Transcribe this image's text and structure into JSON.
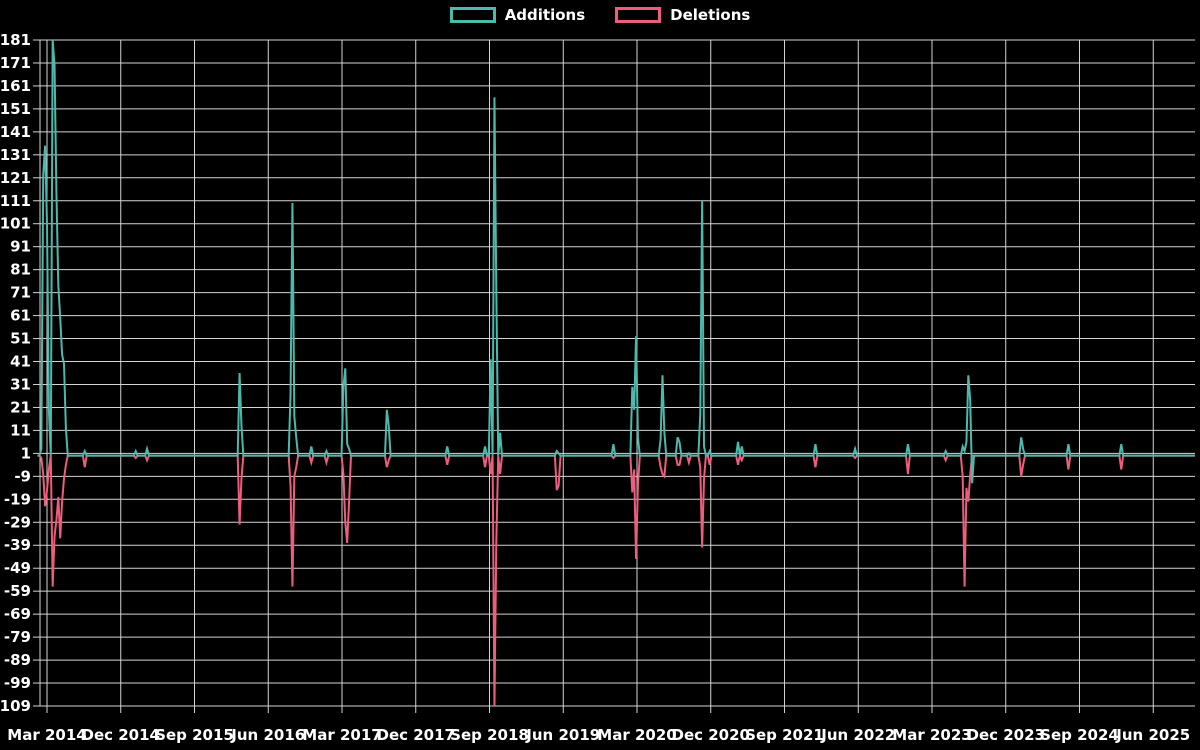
{
  "legend": {
    "items": [
      {
        "label": "Additions",
        "color": "#4cb9ad"
      },
      {
        "label": "Deletions",
        "color": "#ee5d7d"
      }
    ]
  },
  "colors": {
    "background": "#000000",
    "grid": "#d4d4d4",
    "axis_text": "#ffffff",
    "additions": "#4cb9ad",
    "deletions": "#ee5d7d"
  },
  "chart_data": {
    "type": "line",
    "title": "",
    "xlabel": "",
    "ylabel": "",
    "grid": true,
    "legend_position": "top-center",
    "ylim": [
      -109,
      181
    ],
    "y_ticks": [
      181,
      171,
      161,
      151,
      141,
      131,
      121,
      111,
      101,
      91,
      81,
      71,
      61,
      51,
      41,
      31,
      21,
      11,
      1,
      -9,
      -19,
      -29,
      -39,
      -49,
      -59,
      -69,
      -79,
      -89,
      -99,
      -109
    ],
    "x_ticks": [
      "Mar 2014",
      "Dec 2014",
      "Sep 2015",
      "Jun 2016",
      "Mar 2017",
      "Dec 2017",
      "Sep 2018",
      "Jun 2019",
      "Mar 2020",
      "Dec 2020",
      "Sep 2021",
      "Jun 2022",
      "Mar 2023",
      "Dec 2023",
      "Sep 2024",
      "Jun 2025"
    ],
    "x_tick_interval_weeks": 39,
    "week_range": {
      "min_week": -5,
      "max_week": 608
    },
    "series": [
      {
        "name": "Additions",
        "color": "#4cb9ad",
        "baseline": 0
      },
      {
        "name": "Deletions",
        "color": "#ee5d7d",
        "baseline": 0
      }
    ],
    "weekly_spikes_note": "weeks are offsets from the 'Mar 2014' tick; format [week, additions, deletions]; all other weeks are 0",
    "weekly_spikes": [
      [
        -3,
        3,
        -1
      ],
      [
        -2,
        122,
        -8
      ],
      [
        -1,
        135,
        -22
      ],
      [
        0,
        101,
        -15
      ],
      [
        1,
        20,
        -6
      ],
      [
        3,
        181,
        -57
      ],
      [
        4,
        170,
        -35
      ],
      [
        5,
        114,
        -28
      ],
      [
        6,
        74,
        -18
      ],
      [
        7,
        60,
        -36
      ],
      [
        8,
        44,
        -20
      ],
      [
        9,
        40,
        -10
      ],
      [
        10,
        12,
        -4
      ],
      [
        20,
        2,
        -5
      ],
      [
        47,
        2,
        -1
      ],
      [
        53,
        3,
        -2
      ],
      [
        102,
        36,
        -30
      ],
      [
        103,
        13,
        -10
      ],
      [
        129,
        27,
        -13
      ],
      [
        130,
        110,
        -57
      ],
      [
        131,
        17,
        -9
      ],
      [
        132,
        8,
        -5
      ],
      [
        140,
        4,
        -3
      ],
      [
        148,
        2,
        -3
      ],
      [
        157,
        30,
        -8
      ],
      [
        158,
        38,
        -29
      ],
      [
        159,
        5,
        -38
      ],
      [
        160,
        3,
        -20
      ],
      [
        180,
        20,
        -5
      ],
      [
        181,
        13,
        -2
      ],
      [
        212,
        4,
        -4
      ],
      [
        232,
        4,
        -5
      ],
      [
        235,
        42,
        -8
      ],
      [
        237,
        156,
        -109
      ],
      [
        238,
        71,
        -37
      ],
      [
        240,
        10,
        -8
      ],
      [
        270,
        2,
        -15
      ],
      [
        271,
        1,
        -13
      ],
      [
        300,
        5,
        -1
      ],
      [
        310,
        30,
        -16
      ],
      [
        311,
        20,
        -6
      ],
      [
        312,
        52,
        -45
      ],
      [
        313,
        8,
        -13
      ],
      [
        325,
        7,
        -5
      ],
      [
        326,
        35,
        -8
      ],
      [
        327,
        10,
        -9
      ],
      [
        334,
        8,
        -4
      ],
      [
        335,
        6,
        -4
      ],
      [
        340,
        1,
        -3
      ],
      [
        346,
        18,
        -5
      ],
      [
        347,
        111,
        -40
      ],
      [
        348,
        4,
        -10
      ],
      [
        351,
        2,
        -4
      ],
      [
        366,
        6,
        -4
      ],
      [
        368,
        4,
        -2
      ],
      [
        407,
        5,
        -5
      ],
      [
        428,
        3,
        -1
      ],
      [
        456,
        5,
        -8
      ],
      [
        476,
        2,
        -2
      ],
      [
        485,
        4,
        -9
      ],
      [
        486,
        2,
        -57
      ],
      [
        487,
        6,
        -14
      ],
      [
        488,
        35,
        -20
      ],
      [
        489,
        24,
        -8
      ],
      [
        490,
        -12,
        0
      ],
      [
        516,
        8,
        -9
      ],
      [
        517,
        3,
        -4
      ],
      [
        541,
        5,
        -6
      ],
      [
        569,
        5,
        -6
      ]
    ]
  }
}
